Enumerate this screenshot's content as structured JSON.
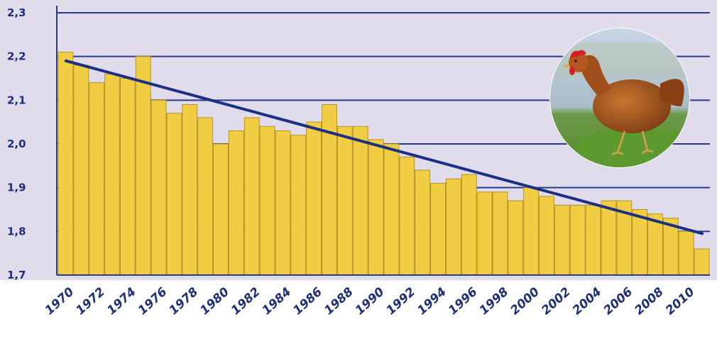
{
  "chart_data": {
    "type": "bar",
    "title": "",
    "xlabel": "",
    "ylabel": "",
    "ylim": [
      1.7,
      2.3
    ],
    "grid": true,
    "yticks": [
      "1,7",
      "1,8",
      "1,9",
      "2,0",
      "2,1",
      "2,2",
      "2,3"
    ],
    "ytick_values": [
      1.7,
      1.8,
      1.9,
      2.0,
      2.1,
      2.2,
      2.3
    ],
    "xtick_labels": [
      "1970",
      "1972",
      "1974",
      "1976",
      "1978",
      "1980",
      "1982",
      "1984",
      "1986",
      "1988",
      "1990",
      "1992",
      "1994",
      "1996",
      "1998",
      "2000",
      "2002",
      "2004",
      "2006",
      "2008",
      "2010"
    ],
    "categories": [
      "1970",
      "1971",
      "1972",
      "1973",
      "1974",
      "1975",
      "1976",
      "1977",
      "1978",
      "1979",
      "1980",
      "1981",
      "1982",
      "1983",
      "1984",
      "1985",
      "1986",
      "1987",
      "1988",
      "1989",
      "1990",
      "1991",
      "1992",
      "1993",
      "1994",
      "1995",
      "1996",
      "1997",
      "1998",
      "1999",
      "2000",
      "2001",
      "2002",
      "2003",
      "2004",
      "2005",
      "2006",
      "2007",
      "2008",
      "2009",
      "2010",
      "2011"
    ],
    "values": [
      2.21,
      2.18,
      2.14,
      2.16,
      2.15,
      2.2,
      2.1,
      2.07,
      2.09,
      2.06,
      2.0,
      2.03,
      2.06,
      2.04,
      2.03,
      2.02,
      2.05,
      2.09,
      2.04,
      2.04,
      2.01,
      2.0,
      1.97,
      1.94,
      1.91,
      1.92,
      1.93,
      1.89,
      1.89,
      1.87,
      1.9,
      1.88,
      1.86,
      1.86,
      1.86,
      1.87,
      1.87,
      1.85,
      1.84,
      1.83,
      1.8,
      1.76
    ],
    "trendline": {
      "start": 2.19,
      "end": 1.795
    },
    "colors": {
      "bar": "#f0cd43",
      "bar_stroke": "#b89420",
      "background": "#e0dcec",
      "grid": "#2a3a8a",
      "trend": "#1b2f85",
      "text": "#1e2f78"
    }
  },
  "photo": {
    "subject": "chicken-photo"
  }
}
